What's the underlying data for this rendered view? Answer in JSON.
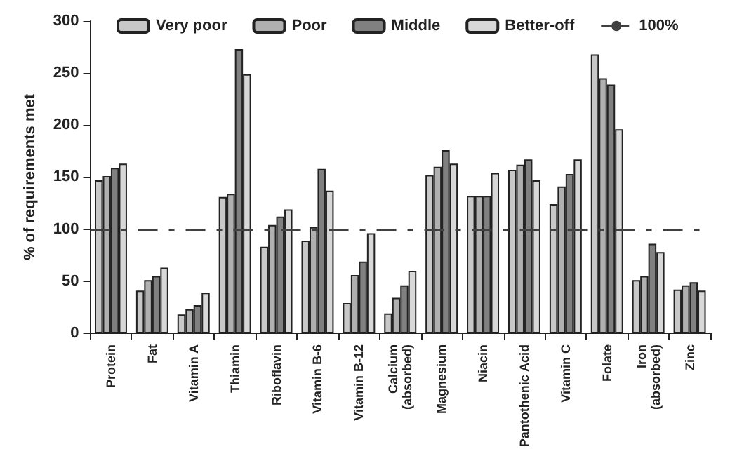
{
  "chart_data": {
    "type": "bar",
    "ylabel": "% of requirements met",
    "categories": [
      "Protein",
      "Fat",
      "Vitamin A",
      "Thiamin",
      "Riboflavin",
      "Vitamin B-6",
      "Vitamin B-12",
      "Calcium\n(absorbed)",
      "Magnesium",
      "Niacin",
      "Pantothenic Acid",
      "Vitamin C",
      "Folate",
      "Iron\n(absorbed)",
      "Zinc"
    ],
    "series": [
      {
        "name": "Very poor",
        "color": "#c8c8c8",
        "values": [
          147,
          41,
          18,
          131,
          83,
          89,
          29,
          19,
          152,
          132,
          157,
          124,
          268,
          51,
          42
        ]
      },
      {
        "name": "Poor",
        "color": "#b0b0b0",
        "values": [
          151,
          51,
          23,
          134,
          104,
          102,
          56,
          34,
          160,
          132,
          162,
          141,
          245,
          55,
          46
        ]
      },
      {
        "name": "Middle",
        "color": "#808080",
        "values": [
          159,
          55,
          27,
          273,
          112,
          158,
          69,
          46,
          176,
          132,
          167,
          153,
          239,
          86,
          49
        ]
      },
      {
        "name": "Better-off",
        "color": "#d8d8d8",
        "values": [
          163,
          63,
          39,
          249,
          119,
          137,
          96,
          60,
          163,
          154,
          147,
          167,
          196,
          78,
          41
        ]
      }
    ],
    "ylim": [
      0,
      300
    ],
    "yticks": [
      0,
      50,
      100,
      150,
      200,
      250,
      300
    ],
    "grid": false,
    "legend": "top",
    "ref_lines": [
      {
        "axis": "y",
        "value": 100,
        "label": "100%",
        "color": "#404040",
        "line_style": "dashed"
      }
    ]
  }
}
